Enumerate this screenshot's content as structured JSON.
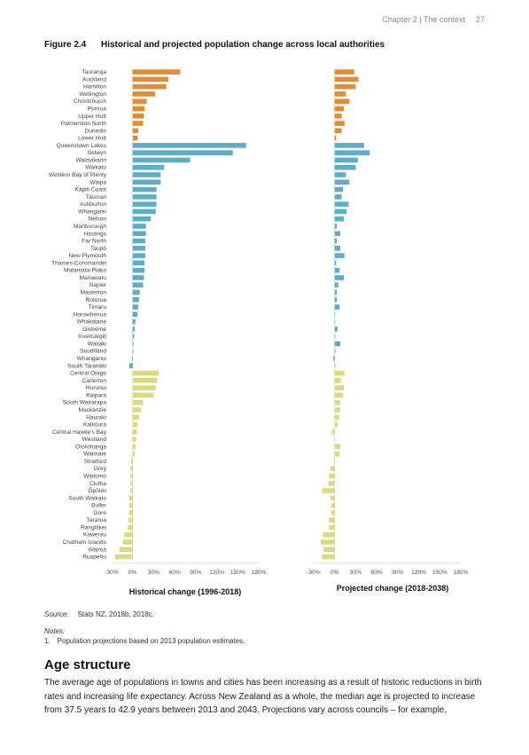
{
  "header": {
    "section": "Chapter 2 | The context",
    "page": "27"
  },
  "figure": {
    "number": "Figure 2.4",
    "title": "Historical and projected population change across local authorities"
  },
  "colors": {
    "orange": "#E48B33",
    "blue": "#5DADC7",
    "yellow": "#D8DB7E"
  },
  "chart_data": {
    "type": "bar",
    "orientation": "horizontal",
    "categories": [
      "Tauranga",
      "Auckland",
      "Hamilton",
      "Wellington",
      "Christchurch",
      "Porirua",
      "Upper Hutt",
      "Palmerston North",
      "Dunedin",
      "Lower Hutt",
      "Queenstown Lakes",
      "Selwyn",
      "Waimakariri",
      "Waikato",
      "Western Bay of Plenty",
      "Waipa",
      "Kāpiti Coast",
      "Tasman",
      "Ashburton",
      "Whangarei",
      "Nelson",
      "Marlborough",
      "Hastings",
      "Far North",
      "Taupō",
      "New Plymouth",
      "Thames-Coromandel",
      "Matamata-Piako",
      "Manawatu",
      "Napier",
      "Masterton",
      "Rotorua",
      "Timaru",
      "Horowhenua",
      "Whakatane",
      "Gisborne",
      "Invercargill",
      "Waitaki",
      "Southland",
      "Whanganui",
      "South Taranaki",
      "Central Otago",
      "Carterton",
      "Hurunui",
      "Kaipara",
      "South Wairarapa",
      "Mackenzie",
      "Hauraki",
      "Kaikōura",
      "Central Hawke's Bay",
      "Westland",
      "Otorohanga",
      "Waimate",
      "Stratford",
      "Grey",
      "Waitomo",
      "Clutha",
      "Ōpōtiki",
      "South Waikato",
      "Buller",
      "Gore",
      "Tararua",
      "Rangitikei",
      "Kawerau",
      "Chatham Islands",
      "Wairoa",
      "Ruapehu"
    ],
    "groups": [
      {
        "color": "orange",
        "count": 10
      },
      {
        "color": "blue",
        "count": 31
      },
      {
        "color": "yellow",
        "count": 26
      }
    ],
    "panels": [
      {
        "xlabel": "Historical change (1996-2018)",
        "values": [
          68,
          51,
          48,
          32,
          20,
          17,
          16,
          15,
          8,
          7,
          162,
          143,
          82,
          45,
          40,
          40,
          34,
          34,
          34,
          33,
          26,
          19,
          19,
          18,
          18,
          18,
          17,
          17,
          16,
          15,
          10,
          9,
          8,
          7,
          4,
          3,
          2,
          1,
          1,
          -1,
          -5,
          37,
          35,
          33,
          30,
          15,
          12,
          9,
          7,
          6,
          5,
          4,
          3,
          -2,
          -3,
          -3,
          -3,
          -3,
          -5,
          -5,
          -5,
          -6,
          -7,
          -12,
          -14,
          -19,
          -25
        ]
      },
      {
        "xlabel": "Projected change (2018-2038)",
        "values": [
          28,
          34,
          30,
          16,
          21,
          13,
          10,
          14,
          10,
          2,
          42,
          50,
          33,
          30,
          16,
          21,
          12,
          10,
          20,
          17,
          13,
          3,
          8,
          3,
          8,
          14,
          2,
          7,
          13,
          5,
          3,
          3,
          7,
          0,
          0,
          4,
          0,
          8,
          1,
          -2,
          0,
          14,
          9,
          13,
          12,
          8,
          8,
          6,
          4,
          -4,
          0,
          8,
          7,
          -1,
          -6,
          -8,
          -9,
          -18,
          -6,
          -5,
          -5,
          -8,
          -8,
          -17,
          -20,
          -16,
          -18
        ]
      }
    ],
    "xticks": [
      "-30%",
      "0%",
      "30%",
      "60%",
      "90%",
      "120%",
      "150%",
      "180%"
    ],
    "xlim": [
      -30,
      180
    ]
  },
  "source": {
    "label": "Source:",
    "text": "Stats NZ, 2018b, 2018c."
  },
  "notes": {
    "label": "Notes:",
    "items": [
      {
        "num": "1.",
        "text": "Population projections based on 2013 population estimates."
      }
    ]
  },
  "section": {
    "heading": "Age structure",
    "paragraph": "The average age of populations in towns and cities has been increasing as a result of historic reductions in birth rates and increasing life expectancy. Across New Zealand as a whole, the median age is projected to increase from 37.5 years to 42.9 years between 2013 and 2043. Projections vary across councils – for example,"
  }
}
